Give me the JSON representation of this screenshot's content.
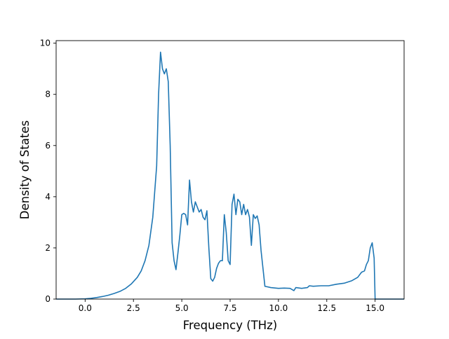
{
  "chart_data": {
    "type": "line",
    "title": "",
    "xlabel": "Frequency (THz)",
    "ylabel": "Density of States",
    "xlim": [
      -1.5,
      16.5
    ],
    "ylim": [
      0,
      10.1
    ],
    "xticks": [
      0.0,
      2.5,
      5.0,
      7.5,
      10.0,
      12.5,
      15.0
    ],
    "xtick_labels": [
      "0.0",
      "2.5",
      "5.0",
      "7.5",
      "10.0",
      "12.5",
      "15.0"
    ],
    "yticks": [
      0,
      2,
      4,
      6,
      8,
      10
    ],
    "ytick_labels": [
      "0",
      "2",
      "4",
      "6",
      "8",
      "10"
    ],
    "grid": false,
    "line_color": "#1f77b4",
    "series": [
      {
        "x": [
          -1.5,
          -1.0,
          -0.5,
          0.0,
          0.3,
          0.6,
          0.9,
          1.2,
          1.5,
          1.8,
          2.1,
          2.4,
          2.7,
          2.9,
          3.1,
          3.3,
          3.5,
          3.6,
          3.7,
          3.8,
          3.9,
          4.0,
          4.1,
          4.2,
          4.3,
          4.4,
          4.5,
          4.6,
          4.7,
          4.8,
          4.9,
          5.0,
          5.1,
          5.2,
          5.3,
          5.4,
          5.5,
          5.6,
          5.7,
          5.8,
          5.9,
          6.0,
          6.1,
          6.2,
          6.3,
          6.4,
          6.5,
          6.6,
          6.7,
          6.8,
          6.9,
          7.0,
          7.1,
          7.2,
          7.3,
          7.4,
          7.5,
          7.6,
          7.7,
          7.8,
          7.9,
          8.0,
          8.1,
          8.2,
          8.3,
          8.4,
          8.5,
          8.6,
          8.7,
          8.8,
          8.9,
          9.0,
          9.1,
          9.3,
          9.6,
          10.0,
          10.3,
          10.6,
          10.8,
          10.9,
          11.2,
          11.5,
          11.6,
          11.8,
          12.2,
          12.6,
          13.0,
          13.4,
          13.8,
          14.1,
          14.3,
          14.45,
          14.55,
          14.65,
          14.75,
          14.85,
          14.95,
          15.0,
          16.5
        ],
        "y": [
          0,
          0,
          0,
          0.01,
          0.03,
          0.06,
          0.1,
          0.15,
          0.22,
          0.3,
          0.42,
          0.6,
          0.85,
          1.1,
          1.5,
          2.1,
          3.2,
          4.2,
          5.2,
          8.0,
          9.65,
          9.0,
          8.8,
          9.0,
          8.5,
          6.0,
          2.2,
          1.5,
          1.15,
          1.8,
          2.5,
          3.3,
          3.35,
          3.3,
          2.9,
          4.65,
          3.8,
          3.4,
          3.8,
          3.6,
          3.4,
          3.5,
          3.2,
          3.1,
          3.45,
          2.0,
          0.8,
          0.7,
          0.85,
          1.2,
          1.4,
          1.5,
          1.5,
          3.3,
          2.6,
          1.5,
          1.35,
          3.7,
          4.1,
          3.3,
          3.9,
          3.8,
          3.3,
          3.7,
          3.3,
          3.5,
          3.2,
          2.1,
          3.3,
          3.15,
          3.25,
          2.9,
          1.9,
          0.5,
          0.45,
          0.42,
          0.43,
          0.42,
          0.33,
          0.45,
          0.42,
          0.45,
          0.52,
          0.5,
          0.52,
          0.52,
          0.58,
          0.62,
          0.72,
          0.85,
          1.05,
          1.1,
          1.35,
          1.5,
          2.0,
          2.2,
          1.6,
          0,
          0
        ]
      }
    ]
  }
}
